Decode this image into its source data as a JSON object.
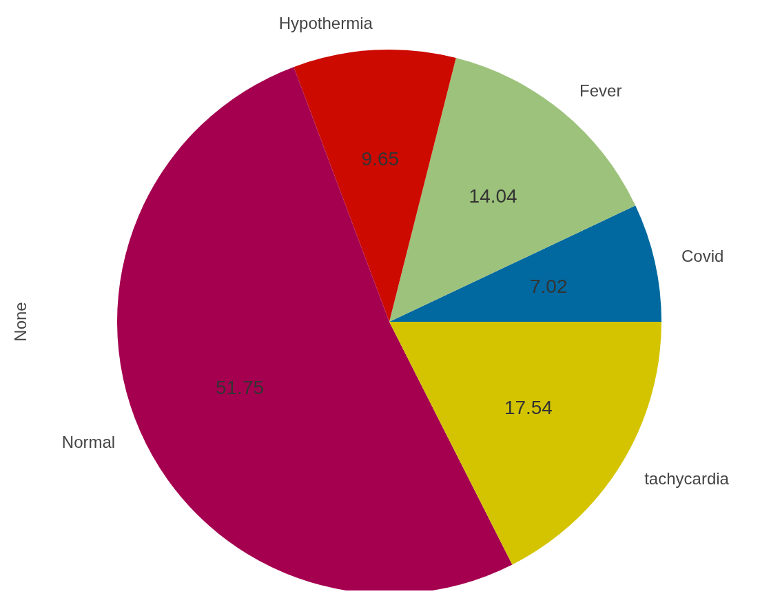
{
  "chart_data": {
    "type": "pie",
    "ylabel": "None",
    "categories": [
      "Covid",
      "Fever",
      "Hypothermia",
      "Normal",
      "tachycardia"
    ],
    "values": [
      7.02,
      14.04,
      9.65,
      51.75,
      17.54
    ],
    "colors": [
      "#01699f",
      "#9dc27b",
      "#cc0a00",
      "#a5004f",
      "#d4c400"
    ],
    "data_labels": true
  }
}
